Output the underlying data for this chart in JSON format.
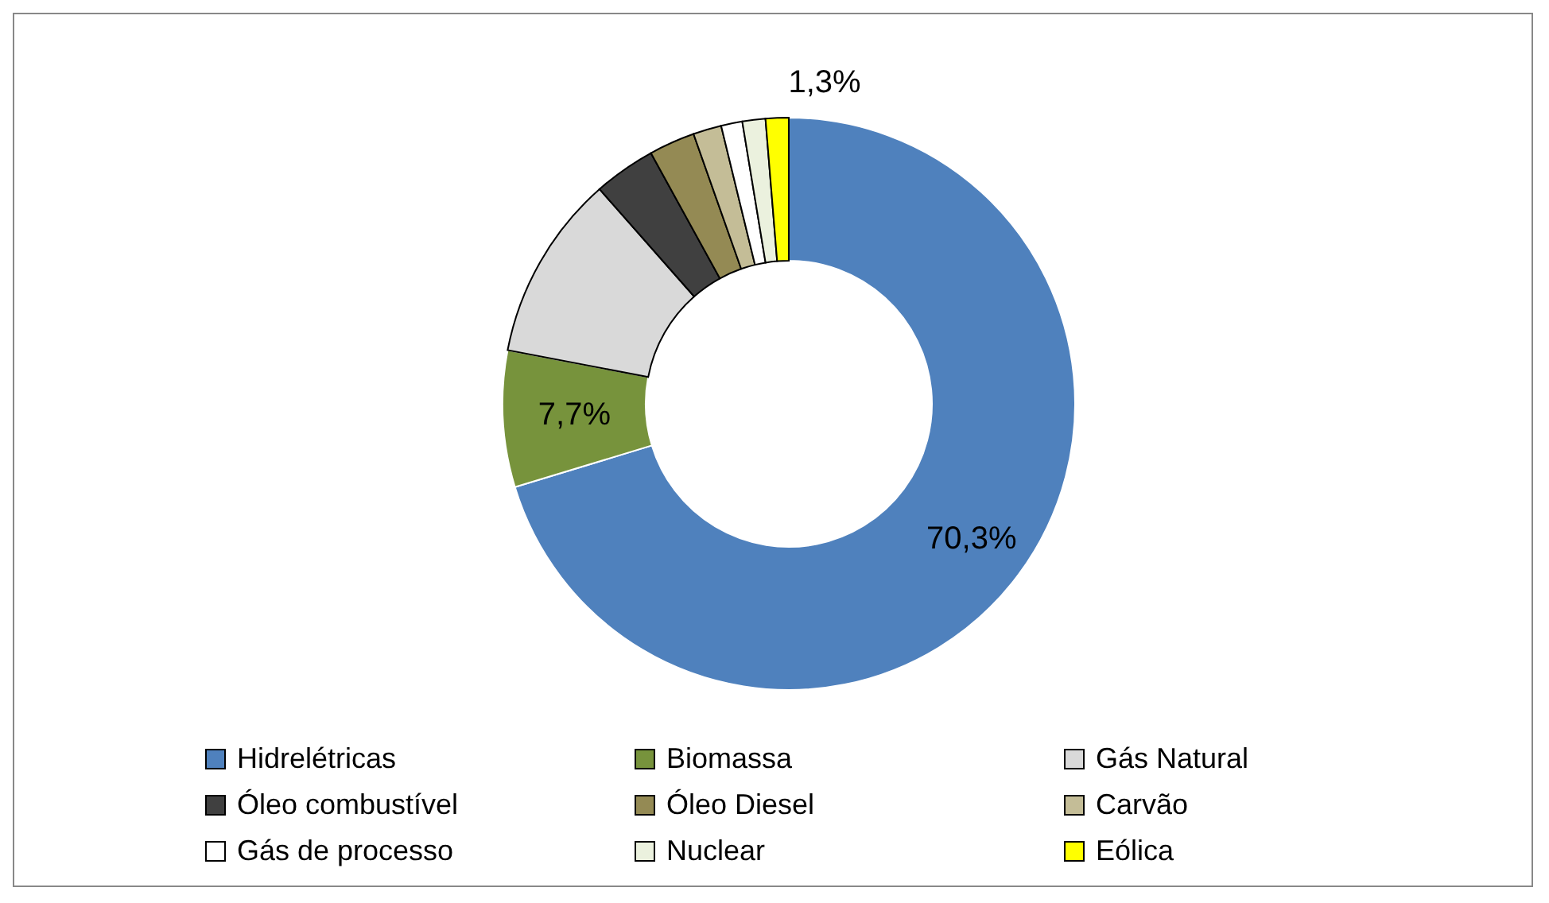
{
  "chart_data": {
    "type": "donut",
    "categories": [
      "Hidrelétricas",
      "Biomassa",
      "Gás Natural",
      "Óleo combustível",
      "Óleo Diesel",
      "Carvão",
      "Gás de processo",
      "Nuclear",
      "Eólica"
    ],
    "values": [
      70.3,
      7.7,
      10.5,
      3.5,
      2.6,
      1.6,
      1.2,
      1.3,
      1.3
    ],
    "colors": [
      "#4f81bd",
      "#77933c",
      "#d9d9d9",
      "#404040",
      "#948a54",
      "#c4bd97",
      "#ffffff",
      "#ebf1de",
      "#ffff00"
    ],
    "value_labels": [
      "70,3%",
      "7,7%",
      null,
      null,
      null,
      null,
      null,
      null,
      "1,3%"
    ],
    "legend": "bottom"
  }
}
